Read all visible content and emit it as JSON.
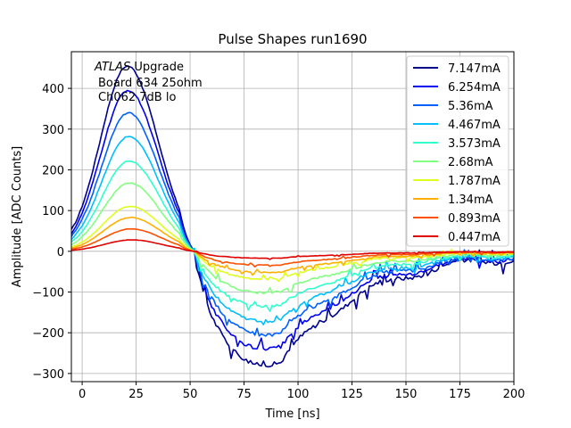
{
  "chart_data": {
    "type": "line",
    "title": "Pulse Shapes run1690",
    "xlabel": "Time [ns]",
    "ylabel": "Amplitude [ADC Counts]",
    "xlim": [
      -5,
      200
    ],
    "ylim": [
      -320,
      490
    ],
    "xticks": [
      0,
      25,
      50,
      75,
      100,
      125,
      150,
      175,
      200
    ],
    "yticks": [
      -300,
      -200,
      -100,
      0,
      100,
      200,
      300,
      400
    ],
    "grid": true,
    "legend_position": "top-right",
    "annotation": {
      "line1_italic": "ATLAS",
      "line1_rest": " Upgrade",
      "line2": "Board 634 25ohm",
      "line3": "Ch062 7dB lo"
    },
    "series": [
      {
        "name": "7.147mA",
        "color": "#00008f",
        "peak": 455,
        "trough": -280
      },
      {
        "name": "6.254mA",
        "color": "#0000f0",
        "peak": 395,
        "trough": -240
      },
      {
        "name": "5.36mA",
        "color": "#0060ff",
        "peak": 340,
        "trough": -205
      },
      {
        "name": "4.467mA",
        "color": "#00bfff",
        "peak": 282,
        "trough": -172
      },
      {
        "name": "3.573mA",
        "color": "#2fffcf",
        "peak": 222,
        "trough": -135
      },
      {
        "name": "2.68mA",
        "color": "#80ff80",
        "peak": 168,
        "trough": -102
      },
      {
        "name": "1.787mA",
        "color": "#dfff1f",
        "peak": 110,
        "trough": -68
      },
      {
        "name": "1.34mA",
        "color": "#ffaf00",
        "peak": 83,
        "trough": -52
      },
      {
        "name": "0.893mA",
        "color": "#ff5000",
        "peak": 55,
        "trough": -34
      },
      {
        "name": "0.447mA",
        "color": "#df0000",
        "peak": 28,
        "trough": -17
      }
    ]
  }
}
